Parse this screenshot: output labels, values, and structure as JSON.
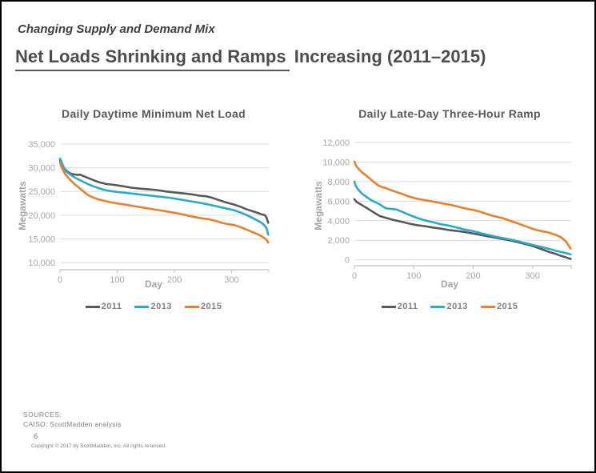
{
  "header": {
    "eyebrow": "Changing Supply and Demand Mix",
    "title_underlined": "Net Loads Shrinking and Ramps",
    "title_rest": " Increasing (2011–2015)"
  },
  "chart_data": [
    {
      "type": "line",
      "title": "Daily Daytime Minimum Net Load",
      "xlabel": "Day",
      "ylabel": "Megawatts",
      "xlim": [
        0,
        365
      ],
      "xticks": [
        0,
        100,
        200,
        300
      ],
      "ylim": [
        8500,
        35000
      ],
      "yticks": [
        10000,
        15000,
        20000,
        25000,
        30000,
        35000
      ],
      "grid": "horizontal",
      "legend_position": "bottom",
      "series": [
        {
          "name": "2011",
          "color": "#595959",
          "points": [
            [
              0,
              31600
            ],
            [
              3,
              30800
            ],
            [
              8,
              29800
            ],
            [
              14,
              29100
            ],
            [
              20,
              28700
            ],
            [
              30,
              28500
            ],
            [
              35,
              28550
            ],
            [
              40,
              28300
            ],
            [
              50,
              27800
            ],
            [
              60,
              27300
            ],
            [
              70,
              26900
            ],
            [
              80,
              26600
            ],
            [
              95,
              26400
            ],
            [
              110,
              26100
            ],
            [
              125,
              25800
            ],
            [
              140,
              25600
            ],
            [
              155,
              25450
            ],
            [
              170,
              25300
            ],
            [
              185,
              25000
            ],
            [
              200,
              24800
            ],
            [
              215,
              24600
            ],
            [
              230,
              24400
            ],
            [
              245,
              24100
            ],
            [
              255,
              24000
            ],
            [
              265,
              23700
            ],
            [
              275,
              23300
            ],
            [
              290,
              22700
            ],
            [
              305,
              22200
            ],
            [
              315,
              21800
            ],
            [
              325,
              21300
            ],
            [
              335,
              20900
            ],
            [
              345,
              20500
            ],
            [
              352,
              20200
            ],
            [
              358,
              20000
            ],
            [
              361,
              19500
            ],
            [
              364,
              18400
            ]
          ]
        },
        {
          "name": "2013",
          "color": "#2baac9",
          "points": [
            [
              0,
              31900
            ],
            [
              2,
              31500
            ],
            [
              5,
              30500
            ],
            [
              10,
              29300
            ],
            [
              15,
              28800
            ],
            [
              20,
              28400
            ],
            [
              28,
              27800
            ],
            [
              38,
              27200
            ],
            [
              48,
              26600
            ],
            [
              58,
              26100
            ],
            [
              68,
              25700
            ],
            [
              75,
              25400
            ],
            [
              85,
              25150
            ],
            [
              100,
              24900
            ],
            [
              115,
              24700
            ],
            [
              130,
              24500
            ],
            [
              145,
              24300
            ],
            [
              160,
              24100
            ],
            [
              175,
              23900
            ],
            [
              190,
              23700
            ],
            [
              205,
              23400
            ],
            [
              220,
              23100
            ],
            [
              235,
              22800
            ],
            [
              250,
              22500
            ],
            [
              265,
              22100
            ],
            [
              280,
              21700
            ],
            [
              295,
              21300
            ],
            [
              305,
              21000
            ],
            [
              315,
              20600
            ],
            [
              325,
              20100
            ],
            [
              335,
              19500
            ],
            [
              345,
              18900
            ],
            [
              352,
              18400
            ],
            [
              357,
              17900
            ],
            [
              361,
              17300
            ],
            [
              364,
              15900
            ]
          ]
        },
        {
          "name": "2015",
          "color": "#e8802e",
          "points": [
            [
              0,
              31100
            ],
            [
              2,
              30400
            ],
            [
              5,
              29500
            ],
            [
              9,
              28700
            ],
            [
              13,
              28100
            ],
            [
              18,
              27400
            ],
            [
              24,
              26700
            ],
            [
              30,
              26100
            ],
            [
              36,
              25500
            ],
            [
              42,
              24900
            ],
            [
              48,
              24300
            ],
            [
              55,
              23900
            ],
            [
              65,
              23400
            ],
            [
              75,
              23100
            ],
            [
              85,
              22800
            ],
            [
              100,
              22500
            ],
            [
              115,
              22200
            ],
            [
              130,
              21900
            ],
            [
              145,
              21600
            ],
            [
              160,
              21300
            ],
            [
              175,
              21000
            ],
            [
              190,
              20700
            ],
            [
              205,
              20400
            ],
            [
              220,
              20000
            ],
            [
              235,
              19600
            ],
            [
              250,
              19300
            ],
            [
              262,
              19100
            ],
            [
              275,
              18700
            ],
            [
              285,
              18300
            ],
            [
              295,
              18100
            ],
            [
              305,
              17900
            ],
            [
              315,
              17500
            ],
            [
              325,
              17000
            ],
            [
              335,
              16500
            ],
            [
              345,
              16000
            ],
            [
              352,
              15600
            ],
            [
              358,
              15100
            ],
            [
              362,
              14600
            ],
            [
              364,
              14200
            ]
          ]
        }
      ]
    },
    {
      "type": "line",
      "title": "Daily Late-Day Three-Hour Ramp",
      "xlabel": "Day",
      "ylabel": "Megawatts",
      "xlim": [
        0,
        365
      ],
      "xticks": [
        0,
        100,
        200,
        300
      ],
      "ylim": [
        -600,
        12000
      ],
      "yticks": [
        0,
        2000,
        4000,
        6000,
        8000,
        10000,
        12000
      ],
      "grid": "horizontal",
      "legend_position": "bottom",
      "series": [
        {
          "name": "2011",
          "color": "#595959",
          "points": [
            [
              0,
              6200
            ],
            [
              4,
              5900
            ],
            [
              10,
              5700
            ],
            [
              18,
              5400
            ],
            [
              26,
              5100
            ],
            [
              34,
              4800
            ],
            [
              42,
              4500
            ],
            [
              50,
              4350
            ],
            [
              58,
              4200
            ],
            [
              68,
              4050
            ],
            [
              79,
              3900
            ],
            [
              92,
              3700
            ],
            [
              105,
              3550
            ],
            [
              118,
              3450
            ],
            [
              132,
              3300
            ],
            [
              145,
              3200
            ],
            [
              159,
              3050
            ],
            [
              172,
              2950
            ],
            [
              185,
              2850
            ],
            [
              199,
              2700
            ],
            [
              212,
              2550
            ],
            [
              225,
              2400
            ],
            [
              239,
              2250
            ],
            [
              252,
              2100
            ],
            [
              265,
              1950
            ],
            [
              279,
              1750
            ],
            [
              292,
              1550
            ],
            [
              301,
              1400
            ],
            [
              310,
              1200
            ],
            [
              319,
              1000
            ],
            [
              328,
              800
            ],
            [
              337,
              650
            ],
            [
              346,
              450
            ],
            [
              355,
              280
            ],
            [
              361,
              150
            ],
            [
              364,
              100
            ]
          ]
        },
        {
          "name": "2013",
          "color": "#2baac9",
          "points": [
            [
              0,
              8000
            ],
            [
              2,
              7600
            ],
            [
              5,
              7300
            ],
            [
              9,
              7000
            ],
            [
              14,
              6700
            ],
            [
              21,
              6400
            ],
            [
              28,
              6100
            ],
            [
              35,
              5900
            ],
            [
              42,
              5700
            ],
            [
              48,
              5450
            ],
            [
              54,
              5250
            ],
            [
              62,
              5200
            ],
            [
              70,
              5150
            ],
            [
              79,
              4950
            ],
            [
              92,
              4600
            ],
            [
              105,
              4300
            ],
            [
              118,
              4050
            ],
            [
              132,
              3850
            ],
            [
              145,
              3650
            ],
            [
              159,
              3500
            ],
            [
              172,
              3300
            ],
            [
              185,
              3100
            ],
            [
              199,
              2950
            ],
            [
              212,
              2750
            ],
            [
              225,
              2550
            ],
            [
              239,
              2350
            ],
            [
              252,
              2200
            ],
            [
              265,
              2050
            ],
            [
              279,
              1850
            ],
            [
              292,
              1650
            ],
            [
              305,
              1450
            ],
            [
              319,
              1250
            ],
            [
              332,
              1050
            ],
            [
              341,
              900
            ],
            [
              350,
              780
            ],
            [
              357,
              680
            ],
            [
              362,
              600
            ],
            [
              364,
              550
            ]
          ]
        },
        {
          "name": "2015",
          "color": "#e8802e",
          "points": [
            [
              0,
              10050
            ],
            [
              3,
              9600
            ],
            [
              7,
              9300
            ],
            [
              12,
              9000
            ],
            [
              18,
              8700
            ],
            [
              24,
              8400
            ],
            [
              30,
              8100
            ],
            [
              36,
              7800
            ],
            [
              40,
              7600
            ],
            [
              46,
              7450
            ],
            [
              52,
              7350
            ],
            [
              58,
              7200
            ],
            [
              65,
              7050
            ],
            [
              72,
              6900
            ],
            [
              80,
              6750
            ],
            [
              88,
              6550
            ],
            [
              96,
              6400
            ],
            [
              105,
              6250
            ],
            [
              114,
              6150
            ],
            [
              123,
              6050
            ],
            [
              132,
              5950
            ],
            [
              141,
              5850
            ],
            [
              150,
              5750
            ],
            [
              160,
              5650
            ],
            [
              170,
              5500
            ],
            [
              180,
              5350
            ],
            [
              190,
              5200
            ],
            [
              200,
              5100
            ],
            [
              210,
              4950
            ],
            [
              220,
              4750
            ],
            [
              230,
              4550
            ],
            [
              240,
              4400
            ],
            [
              250,
              4250
            ],
            [
              258,
              4100
            ],
            [
              266,
              3900
            ],
            [
              274,
              3750
            ],
            [
              283,
              3550
            ],
            [
              292,
              3350
            ],
            [
              301,
              3150
            ],
            [
              310,
              3000
            ],
            [
              318,
              2900
            ],
            [
              326,
              2800
            ],
            [
              334,
              2650
            ],
            [
              341,
              2500
            ],
            [
              348,
              2300
            ],
            [
              353,
              2050
            ],
            [
              357,
              1800
            ],
            [
              360,
              1500
            ],
            [
              363,
              1250
            ],
            [
              364,
              1150
            ]
          ]
        }
      ]
    }
  ],
  "footer": {
    "sources_label": "SOURCES:",
    "sources_text": "CAISO; ScottMadden analysis",
    "page_number": "6",
    "copyright": "Copyright © 2017 by ScottMadden, Inc. All rights reserved."
  }
}
